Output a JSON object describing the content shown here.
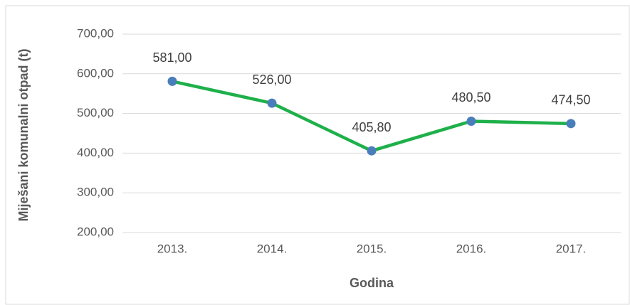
{
  "chart_data": {
    "type": "line",
    "x_label": "Godina",
    "y_label": "Miješani komunalni otpad (t)",
    "categories": [
      "2013.",
      "2014.",
      "2015.",
      "2016.",
      "2017."
    ],
    "series": [
      {
        "name": "Miješani komunalni otpad (t)",
        "color": "#1eb04a",
        "marker_color": "#4a7ebb",
        "values": [
          581,
          526,
          405.8,
          480.5,
          474.5
        ],
        "value_labels": [
          "581,00",
          "526,00",
          "405,80",
          "480,50",
          "474,50"
        ]
      }
    ],
    "ylim": [
      200,
      700
    ],
    "yticks": [
      {
        "value": 200,
        "label": "200,00"
      },
      {
        "value": 300,
        "label": "300,00"
      },
      {
        "value": 400,
        "label": "400,00"
      },
      {
        "value": 500,
        "label": "500,00"
      },
      {
        "value": 600,
        "label": "600,00"
      },
      {
        "value": 700,
        "label": "700,00"
      }
    ],
    "grid": true
  }
}
